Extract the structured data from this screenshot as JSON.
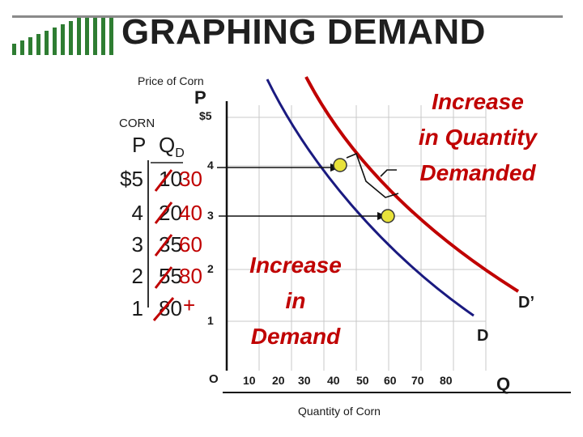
{
  "slide": {
    "title": "GRAPHING DEMAND",
    "price_axis_caption": "Price of Corn",
    "price_axis_letter": "P",
    "table_caption": "CORN",
    "table_col_p": "P",
    "table_col_q": "Q",
    "table_col_q_sub": "D",
    "table_rows": [
      {
        "p": "$5",
        "q_old": "10",
        "q_new": "30"
      },
      {
        "p": "4",
        "q_old": "20",
        "q_new": "40"
      },
      {
        "p": "3",
        "q_old": "35",
        "q_new": "60"
      },
      {
        "p": "2",
        "q_old": "55",
        "q_new": "80"
      },
      {
        "p": "1",
        "q_old": "80",
        "q_new": "+"
      }
    ],
    "y_ticks": [
      "$5",
      "4",
      "3",
      "2",
      "1"
    ],
    "origin_label": "O",
    "x_ticks": [
      "10",
      "20",
      "30",
      "40",
      "50",
      "60",
      "70",
      "80"
    ],
    "x_axis_letter": "Q",
    "x_axis_caption": "Quantity of Corn",
    "annotation_quantity": [
      "Increase",
      "in Quantity",
      "Demanded"
    ],
    "annotation_demand": [
      "Increase",
      "in",
      "Demand"
    ],
    "curve_d_label": "D",
    "curve_d_prime_label": "D’",
    "colors": {
      "accent_red": "#c00000",
      "curve_navy": "#1a1a80",
      "point_yellow": "#e8e23a",
      "deco_green": "#2e7d32"
    }
  }
}
